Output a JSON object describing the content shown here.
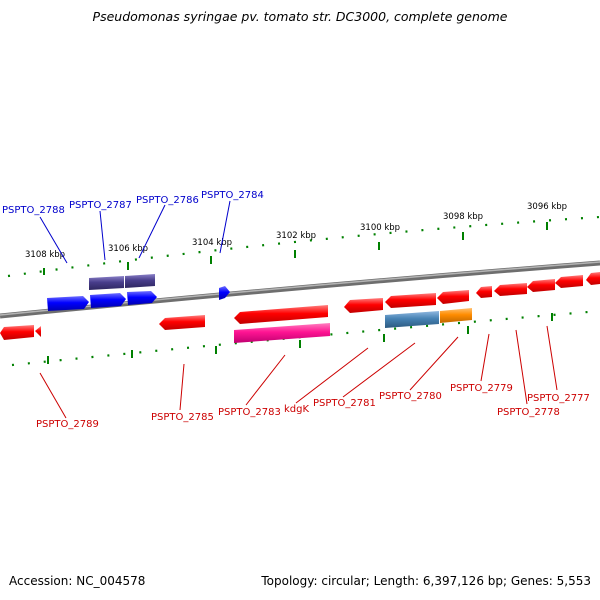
{
  "title": "Pseudomonas syringae pv. tomato str. DC3000, complete genome",
  "footer": {
    "accession": "Accession: NC_004578",
    "summary": "Topology: circular; Length: 6,397,126 bp; Genes: 5,553"
  },
  "scale_labels": [
    "3108 kbp",
    "3106 kbp",
    "3104 kbp",
    "3102 kbp",
    "3100 kbp",
    "3098 kbp",
    "3096 kbp"
  ],
  "colors": {
    "backbone": "#8c8c8c",
    "tick": "#008000",
    "gene_red": "#ff0000",
    "gene_blue": "#0000ff",
    "gene_purple": "#483d8b",
    "gene_magenta": "#ff1493",
    "gene_steelblue": "#4682b4",
    "gene_orange": "#ff8c00",
    "label_blue": "#0000cc",
    "label_red": "#cc0000"
  },
  "genes_top": [
    "PSPTO_2788",
    "PSPTO_2787",
    "PSPTO_2786",
    "PSPTO_2784"
  ],
  "genes_bottom": [
    "PSPTO_2789",
    "PSPTO_2785",
    "PSPTO_2783",
    "kdgK",
    "PSPTO_2781",
    "PSPTO_2780",
    "PSPTO_2779",
    "PSPTO_2778",
    "PSPTO_2777"
  ]
}
